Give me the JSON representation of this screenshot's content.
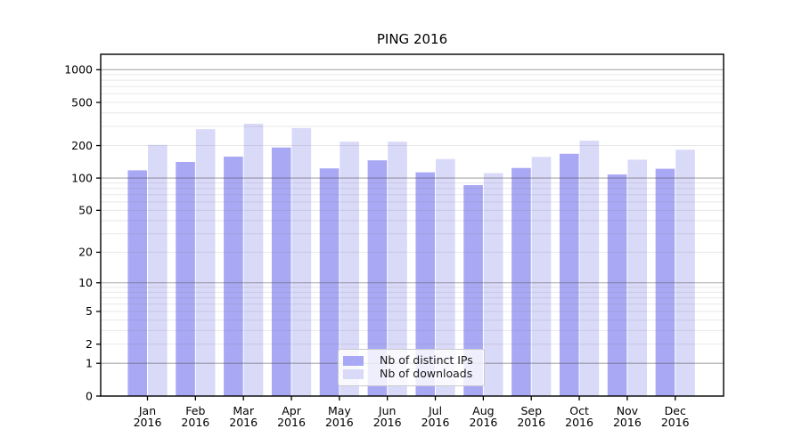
{
  "chart_data": {
    "type": "bar",
    "title": "PING 2016",
    "categories": [
      "Jan",
      "Feb",
      "Mar",
      "Apr",
      "May",
      "Jun",
      "Jul",
      "Aug",
      "Sep",
      "Oct",
      "Nov",
      "Dec"
    ],
    "category_year": "2016",
    "series": [
      {
        "name": "Nb of distinct IPs",
        "color": "#a8a8f5",
        "values": [
          118,
          141,
          158,
          192,
          123,
          146,
          113,
          86,
          124,
          168,
          108,
          122
        ]
      },
      {
        "name": "Nb of downloads",
        "color": "#d9d9f8",
        "values": [
          203,
          283,
          318,
          290,
          217,
          217,
          150,
          111,
          157,
          222,
          148,
          183
        ]
      }
    ],
    "yscale": "log1p",
    "ylim": [
      0,
      1387
    ],
    "yticks": [
      0,
      1,
      2,
      5,
      10,
      20,
      50,
      100,
      200,
      500,
      1000
    ],
    "grid": {
      "major_ticks": [
        1,
        10,
        100,
        1000
      ],
      "major_color": "rgba(80,80,80,0.5)",
      "minor_color": "rgba(120,120,120,0.17)",
      "minor_on": true
    },
    "legend": {
      "position": "lower center"
    },
    "axis_color": "#000000",
    "background": "#ffffff"
  }
}
